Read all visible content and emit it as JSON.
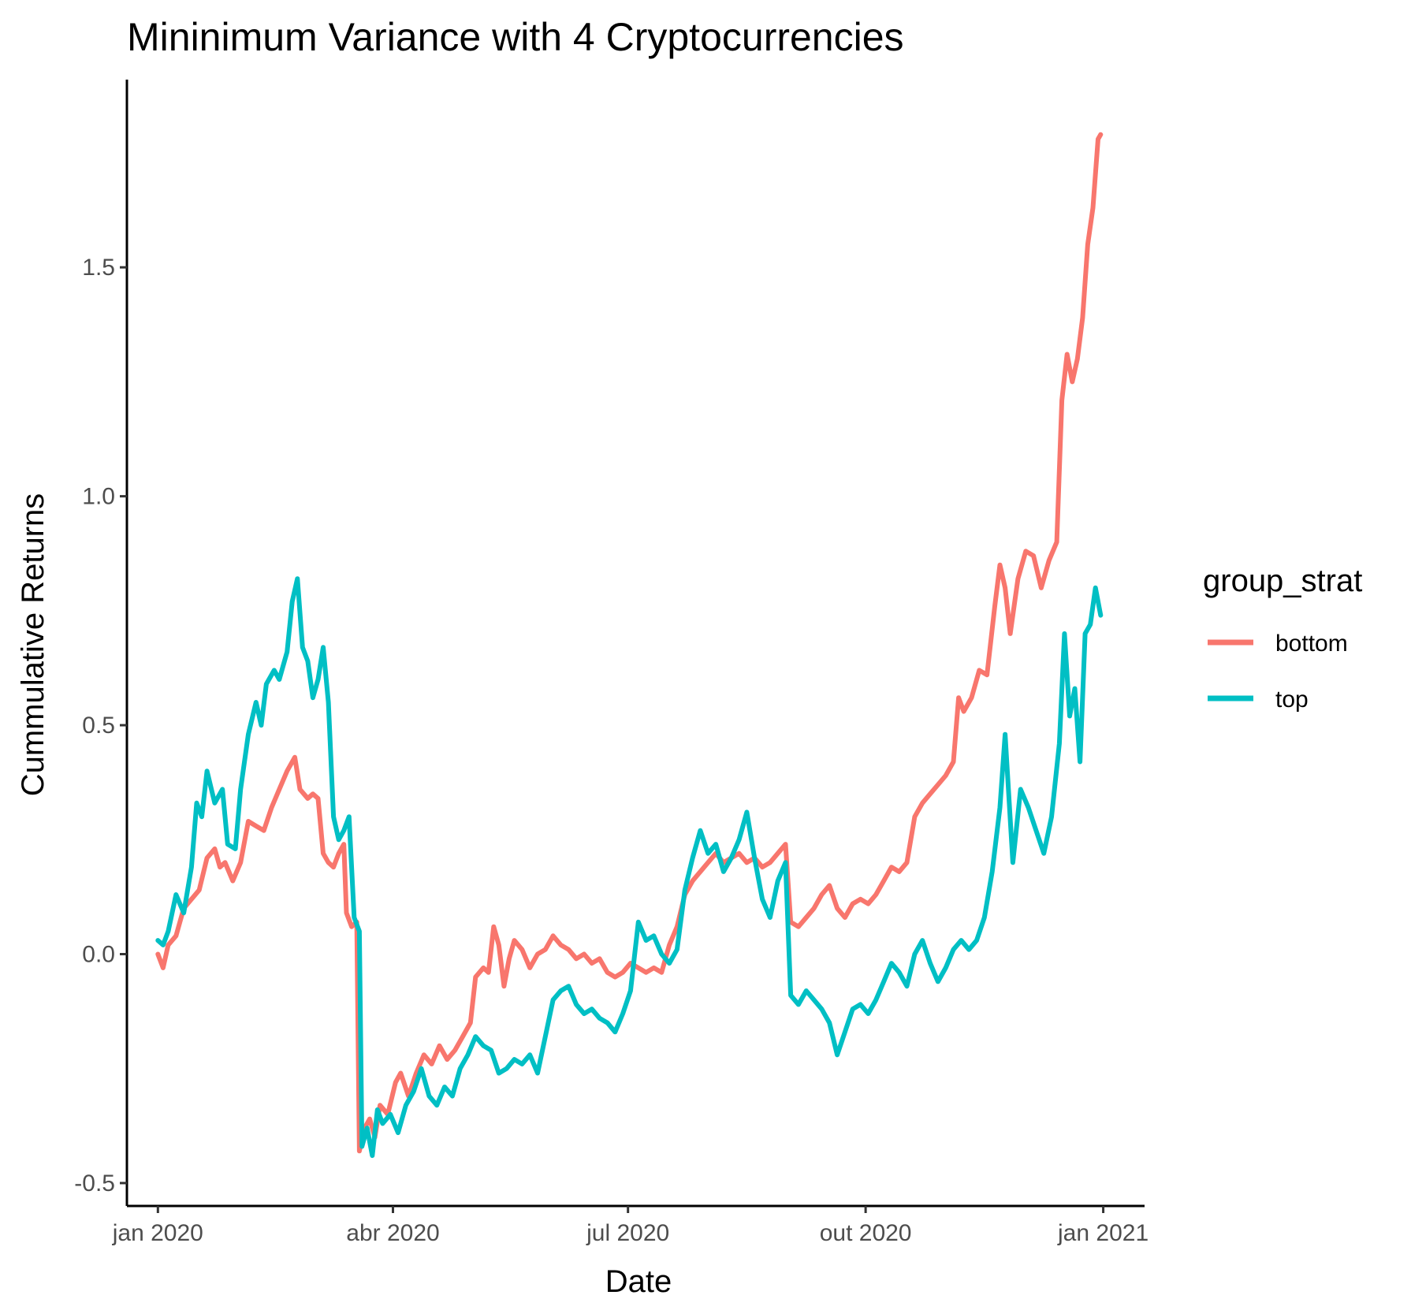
{
  "chart_data": {
    "type": "line",
    "title": "Mininimum Variance  with 4 Cryptocurrencies",
    "xlabel": "Date",
    "ylabel": "Cummulative Returns",
    "x_ticks": [
      "jan 2020",
      "abr 2020",
      "jul 2020",
      "out 2020",
      "jan 2021"
    ],
    "y_ticks": [
      "-0.5",
      "0.0",
      "0.5",
      "1.0",
      "1.5"
    ],
    "ylim": [
      -0.55,
      1.91
    ],
    "xlim": [
      "2019-12-20",
      "2021-01-17"
    ],
    "grid": false,
    "legend": {
      "title": "group_strat",
      "position": "right"
    },
    "series": [
      {
        "name": "bottom",
        "color": "#F8766D",
        "points": [
          [
            "2020-01-01",
            0.0
          ],
          [
            "2020-01-03",
            -0.03
          ],
          [
            "2020-01-05",
            0.02
          ],
          [
            "2020-01-08",
            0.04
          ],
          [
            "2020-01-11",
            0.1
          ],
          [
            "2020-01-14",
            0.12
          ],
          [
            "2020-01-17",
            0.14
          ],
          [
            "2020-01-20",
            0.21
          ],
          [
            "2020-01-23",
            0.23
          ],
          [
            "2020-01-25",
            0.19
          ],
          [
            "2020-01-27",
            0.2
          ],
          [
            "2020-01-30",
            0.16
          ],
          [
            "2020-02-02",
            0.2
          ],
          [
            "2020-02-05",
            0.29
          ],
          [
            "2020-02-08",
            0.28
          ],
          [
            "2020-02-11",
            0.27
          ],
          [
            "2020-02-14",
            0.32
          ],
          [
            "2020-02-17",
            0.36
          ],
          [
            "2020-02-20",
            0.4
          ],
          [
            "2020-02-23",
            0.43
          ],
          [
            "2020-02-25",
            0.36
          ],
          [
            "2020-02-28",
            0.34
          ],
          [
            "2020-03-01",
            0.35
          ],
          [
            "2020-03-03",
            0.34
          ],
          [
            "2020-03-05",
            0.22
          ],
          [
            "2020-03-07",
            0.2
          ],
          [
            "2020-03-09",
            0.19
          ],
          [
            "2020-03-11",
            0.22
          ],
          [
            "2020-03-13",
            0.24
          ],
          [
            "2020-03-14",
            0.09
          ],
          [
            "2020-03-16",
            0.06
          ],
          [
            "2020-03-18",
            0.07
          ],
          [
            "2020-03-19",
            -0.43
          ],
          [
            "2020-03-21",
            -0.38
          ],
          [
            "2020-03-23",
            -0.36
          ],
          [
            "2020-03-25",
            -0.4
          ],
          [
            "2020-03-27",
            -0.33
          ],
          [
            "2020-03-30",
            -0.35
          ],
          [
            "2020-04-02",
            -0.28
          ],
          [
            "2020-04-04",
            -0.26
          ],
          [
            "2020-04-07",
            -0.31
          ],
          [
            "2020-04-10",
            -0.26
          ],
          [
            "2020-04-13",
            -0.22
          ],
          [
            "2020-04-16",
            -0.24
          ],
          [
            "2020-04-19",
            -0.2
          ],
          [
            "2020-04-22",
            -0.23
          ],
          [
            "2020-04-25",
            -0.21
          ],
          [
            "2020-04-28",
            -0.18
          ],
          [
            "2020-05-01",
            -0.15
          ],
          [
            "2020-05-03",
            -0.05
          ],
          [
            "2020-05-06",
            -0.03
          ],
          [
            "2020-05-08",
            -0.04
          ],
          [
            "2020-05-10",
            0.06
          ],
          [
            "2020-05-12",
            0.02
          ],
          [
            "2020-05-14",
            -0.07
          ],
          [
            "2020-05-16",
            -0.01
          ],
          [
            "2020-05-18",
            0.03
          ],
          [
            "2020-05-21",
            0.01
          ],
          [
            "2020-05-24",
            -0.03
          ],
          [
            "2020-05-27",
            0.0
          ],
          [
            "2020-05-30",
            0.01
          ],
          [
            "2020-06-02",
            0.04
          ],
          [
            "2020-06-05",
            0.02
          ],
          [
            "2020-06-08",
            0.01
          ],
          [
            "2020-06-11",
            -0.01
          ],
          [
            "2020-06-14",
            0.0
          ],
          [
            "2020-06-17",
            -0.02
          ],
          [
            "2020-06-20",
            -0.01
          ],
          [
            "2020-06-23",
            -0.04
          ],
          [
            "2020-06-26",
            -0.05
          ],
          [
            "2020-06-29",
            -0.04
          ],
          [
            "2020-07-02",
            -0.02
          ],
          [
            "2020-07-05",
            -0.03
          ],
          [
            "2020-07-08",
            -0.04
          ],
          [
            "2020-07-11",
            -0.03
          ],
          [
            "2020-07-14",
            -0.04
          ],
          [
            "2020-07-17",
            0.02
          ],
          [
            "2020-07-20",
            0.06
          ],
          [
            "2020-07-23",
            0.13
          ],
          [
            "2020-07-26",
            0.16
          ],
          [
            "2020-07-29",
            0.18
          ],
          [
            "2020-08-01",
            0.2
          ],
          [
            "2020-08-04",
            0.22
          ],
          [
            "2020-08-07",
            0.2
          ],
          [
            "2020-08-10",
            0.21
          ],
          [
            "2020-08-13",
            0.22
          ],
          [
            "2020-08-16",
            0.2
          ],
          [
            "2020-08-19",
            0.21
          ],
          [
            "2020-08-22",
            0.19
          ],
          [
            "2020-08-25",
            0.2
          ],
          [
            "2020-08-28",
            0.22
          ],
          [
            "2020-08-31",
            0.24
          ],
          [
            "2020-09-02",
            0.07
          ],
          [
            "2020-09-05",
            0.06
          ],
          [
            "2020-09-08",
            0.08
          ],
          [
            "2020-09-11",
            0.1
          ],
          [
            "2020-09-14",
            0.13
          ],
          [
            "2020-09-17",
            0.15
          ],
          [
            "2020-09-20",
            0.1
          ],
          [
            "2020-09-23",
            0.08
          ],
          [
            "2020-09-26",
            0.11
          ],
          [
            "2020-09-29",
            0.12
          ],
          [
            "2020-10-02",
            0.11
          ],
          [
            "2020-10-05",
            0.13
          ],
          [
            "2020-10-08",
            0.16
          ],
          [
            "2020-10-11",
            0.19
          ],
          [
            "2020-10-14",
            0.18
          ],
          [
            "2020-10-17",
            0.2
          ],
          [
            "2020-10-20",
            0.3
          ],
          [
            "2020-10-23",
            0.33
          ],
          [
            "2020-10-26",
            0.35
          ],
          [
            "2020-10-29",
            0.37
          ],
          [
            "2020-11-01",
            0.39
          ],
          [
            "2020-11-04",
            0.42
          ],
          [
            "2020-11-06",
            0.56
          ],
          [
            "2020-11-08",
            0.53
          ],
          [
            "2020-11-11",
            0.56
          ],
          [
            "2020-11-14",
            0.62
          ],
          [
            "2020-11-17",
            0.61
          ],
          [
            "2020-11-20",
            0.76
          ],
          [
            "2020-11-22",
            0.85
          ],
          [
            "2020-11-24",
            0.8
          ],
          [
            "2020-11-26",
            0.7
          ],
          [
            "2020-11-29",
            0.82
          ],
          [
            "2020-12-02",
            0.88
          ],
          [
            "2020-12-05",
            0.87
          ],
          [
            "2020-12-08",
            0.8
          ],
          [
            "2020-12-11",
            0.86
          ],
          [
            "2020-12-14",
            0.9
          ],
          [
            "2020-12-16",
            1.21
          ],
          [
            "2020-12-18",
            1.31
          ],
          [
            "2020-12-20",
            1.25
          ],
          [
            "2020-12-22",
            1.3
          ],
          [
            "2020-12-24",
            1.39
          ],
          [
            "2020-12-26",
            1.55
          ],
          [
            "2020-12-28",
            1.63
          ],
          [
            "2020-12-30",
            1.78
          ],
          [
            "2020-12-31",
            1.79
          ]
        ]
      },
      {
        "name": "top",
        "color": "#00BFC4",
        "points": [
          [
            "2020-01-01",
            0.03
          ],
          [
            "2020-01-03",
            0.02
          ],
          [
            "2020-01-05",
            0.05
          ],
          [
            "2020-01-08",
            0.13
          ],
          [
            "2020-01-11",
            0.09
          ],
          [
            "2020-01-14",
            0.19
          ],
          [
            "2020-01-16",
            0.33
          ],
          [
            "2020-01-18",
            0.3
          ],
          [
            "2020-01-20",
            0.4
          ],
          [
            "2020-01-23",
            0.33
          ],
          [
            "2020-01-26",
            0.36
          ],
          [
            "2020-01-28",
            0.24
          ],
          [
            "2020-01-31",
            0.23
          ],
          [
            "2020-02-02",
            0.36
          ],
          [
            "2020-02-05",
            0.48
          ],
          [
            "2020-02-08",
            0.55
          ],
          [
            "2020-02-10",
            0.5
          ],
          [
            "2020-02-12",
            0.59
          ],
          [
            "2020-02-15",
            0.62
          ],
          [
            "2020-02-17",
            0.6
          ],
          [
            "2020-02-20",
            0.66
          ],
          [
            "2020-02-22",
            0.77
          ],
          [
            "2020-02-24",
            0.82
          ],
          [
            "2020-02-26",
            0.67
          ],
          [
            "2020-02-28",
            0.64
          ],
          [
            "2020-03-01",
            0.56
          ],
          [
            "2020-03-03",
            0.6
          ],
          [
            "2020-03-05",
            0.67
          ],
          [
            "2020-03-07",
            0.55
          ],
          [
            "2020-03-09",
            0.3
          ],
          [
            "2020-03-11",
            0.25
          ],
          [
            "2020-03-13",
            0.27
          ],
          [
            "2020-03-15",
            0.3
          ],
          [
            "2020-03-17",
            0.08
          ],
          [
            "2020-03-19",
            0.05
          ],
          [
            "2020-03-20",
            -0.42
          ],
          [
            "2020-03-22",
            -0.38
          ],
          [
            "2020-03-24",
            -0.44
          ],
          [
            "2020-03-26",
            -0.34
          ],
          [
            "2020-03-28",
            -0.37
          ],
          [
            "2020-03-31",
            -0.35
          ],
          [
            "2020-04-03",
            -0.39
          ],
          [
            "2020-04-06",
            -0.33
          ],
          [
            "2020-04-09",
            -0.3
          ],
          [
            "2020-04-12",
            -0.25
          ],
          [
            "2020-04-15",
            -0.31
          ],
          [
            "2020-04-18",
            -0.33
          ],
          [
            "2020-04-21",
            -0.29
          ],
          [
            "2020-04-24",
            -0.31
          ],
          [
            "2020-04-27",
            -0.25
          ],
          [
            "2020-04-30",
            -0.22
          ],
          [
            "2020-05-03",
            -0.18
          ],
          [
            "2020-05-06",
            -0.2
          ],
          [
            "2020-05-09",
            -0.21
          ],
          [
            "2020-05-12",
            -0.26
          ],
          [
            "2020-05-15",
            -0.25
          ],
          [
            "2020-05-18",
            -0.23
          ],
          [
            "2020-05-21",
            -0.24
          ],
          [
            "2020-05-24",
            -0.22
          ],
          [
            "2020-05-27",
            -0.26
          ],
          [
            "2020-05-30",
            -0.18
          ],
          [
            "2020-06-02",
            -0.1
          ],
          [
            "2020-06-05",
            -0.08
          ],
          [
            "2020-06-08",
            -0.07
          ],
          [
            "2020-06-11",
            -0.11
          ],
          [
            "2020-06-14",
            -0.13
          ],
          [
            "2020-06-17",
            -0.12
          ],
          [
            "2020-06-20",
            -0.14
          ],
          [
            "2020-06-23",
            -0.15
          ],
          [
            "2020-06-26",
            -0.17
          ],
          [
            "2020-06-29",
            -0.13
          ],
          [
            "2020-07-02",
            -0.08
          ],
          [
            "2020-07-05",
            0.07
          ],
          [
            "2020-07-08",
            0.03
          ],
          [
            "2020-07-11",
            0.04
          ],
          [
            "2020-07-14",
            0.0
          ],
          [
            "2020-07-17",
            -0.02
          ],
          [
            "2020-07-20",
            0.01
          ],
          [
            "2020-07-23",
            0.14
          ],
          [
            "2020-07-26",
            0.21
          ],
          [
            "2020-07-29",
            0.27
          ],
          [
            "2020-08-01",
            0.22
          ],
          [
            "2020-08-04",
            0.24
          ],
          [
            "2020-08-07",
            0.18
          ],
          [
            "2020-08-10",
            0.21
          ],
          [
            "2020-08-13",
            0.25
          ],
          [
            "2020-08-16",
            0.31
          ],
          [
            "2020-08-19",
            0.21
          ],
          [
            "2020-08-22",
            0.12
          ],
          [
            "2020-08-25",
            0.08
          ],
          [
            "2020-08-28",
            0.16
          ],
          [
            "2020-08-31",
            0.2
          ],
          [
            "2020-09-02",
            -0.09
          ],
          [
            "2020-09-05",
            -0.11
          ],
          [
            "2020-09-08",
            -0.08
          ],
          [
            "2020-09-11",
            -0.1
          ],
          [
            "2020-09-14",
            -0.12
          ],
          [
            "2020-09-17",
            -0.15
          ],
          [
            "2020-09-20",
            -0.22
          ],
          [
            "2020-09-23",
            -0.17
          ],
          [
            "2020-09-26",
            -0.12
          ],
          [
            "2020-09-29",
            -0.11
          ],
          [
            "2020-10-02",
            -0.13
          ],
          [
            "2020-10-05",
            -0.1
          ],
          [
            "2020-10-08",
            -0.06
          ],
          [
            "2020-10-11",
            -0.02
          ],
          [
            "2020-10-14",
            -0.04
          ],
          [
            "2020-10-17",
            -0.07
          ],
          [
            "2020-10-20",
            0.0
          ],
          [
            "2020-10-23",
            0.03
          ],
          [
            "2020-10-26",
            -0.02
          ],
          [
            "2020-10-29",
            -0.06
          ],
          [
            "2020-11-01",
            -0.03
          ],
          [
            "2020-11-04",
            0.01
          ],
          [
            "2020-11-07",
            0.03
          ],
          [
            "2020-11-10",
            0.01
          ],
          [
            "2020-11-13",
            0.03
          ],
          [
            "2020-11-16",
            0.08
          ],
          [
            "2020-11-19",
            0.18
          ],
          [
            "2020-11-22",
            0.32
          ],
          [
            "2020-11-24",
            0.48
          ],
          [
            "2020-11-27",
            0.2
          ],
          [
            "2020-11-30",
            0.36
          ],
          [
            "2020-12-03",
            0.32
          ],
          [
            "2020-12-06",
            0.27
          ],
          [
            "2020-12-09",
            0.22
          ],
          [
            "2020-12-12",
            0.3
          ],
          [
            "2020-12-15",
            0.46
          ],
          [
            "2020-12-17",
            0.7
          ],
          [
            "2020-12-19",
            0.52
          ],
          [
            "2020-12-21",
            0.58
          ],
          [
            "2020-12-23",
            0.42
          ],
          [
            "2020-12-25",
            0.7
          ],
          [
            "2020-12-27",
            0.72
          ],
          [
            "2020-12-29",
            0.8
          ],
          [
            "2020-12-31",
            0.74
          ]
        ]
      }
    ]
  }
}
